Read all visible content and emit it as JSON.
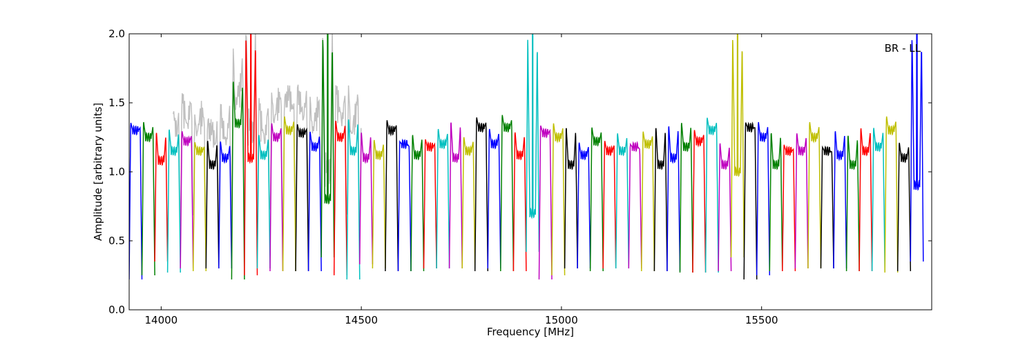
{
  "chart_data": {
    "type": "line",
    "annotation": "BR - LL",
    "xlabel": "Frequency [MHz]",
    "ylabel": "Amplitude [arbitrary units]",
    "xlim": [
      13920,
      15925
    ],
    "ylim": [
      0.0,
      2.0
    ],
    "xticks": [
      14000,
      14500,
      15000,
      15500
    ],
    "xtick_labels": [
      "14000",
      "14500",
      "15000",
      "15500"
    ],
    "yticks": [
      0.0,
      0.5,
      1.0,
      1.5,
      2.0
    ],
    "ytick_labels": [
      "0.0",
      "0.5",
      "1.0",
      "1.5",
      "2.0"
    ],
    "grid": false,
    "legend": "none",
    "series_colors": [
      "#0000ff",
      "#008000",
      "#ff0000",
      "#00bfbf",
      "#bf00bf",
      "#bfbf00",
      "#000000"
    ],
    "background_color": "#c0c0c0",
    "channel_width_mhz": 32,
    "channels": [
      {
        "start": 13920,
        "color": "#0000ff",
        "peak": 1.36,
        "mid": 1.3,
        "dip": 0.22
      },
      {
        "start": 13952,
        "color": "#008000",
        "peak": 1.37,
        "mid": 1.25,
        "dip": 0.25
      },
      {
        "start": 13984,
        "color": "#ff0000",
        "peak": 1.3,
        "mid": 1.08,
        "dip": 0.35
      },
      {
        "start": 14016,
        "color": "#00bfbf",
        "peak": 1.32,
        "mid": 1.15,
        "dip": 0.27
      },
      {
        "start": 14048,
        "color": "#bf00bf",
        "peak": 1.3,
        "mid": 1.22,
        "dip": 0.3
      },
      {
        "start": 14080,
        "color": "#bfbf00",
        "peak": 1.22,
        "mid": 1.15,
        "dip": 0.28
      },
      {
        "start": 14112,
        "color": "#000000",
        "peak": 1.24,
        "mid": 1.05,
        "dip": 0.3
      },
      {
        "start": 14144,
        "color": "#0000ff",
        "peak": 1.23,
        "mid": 1.1,
        "dip": 0.3
      },
      {
        "start": 14176,
        "color": "#008000",
        "peak": 1.68,
        "mid": 1.35,
        "dip": 0.22
      },
      {
        "start": 14208,
        "color": "#ff0000",
        "peak": 2.0,
        "mid": 1.1,
        "dip": 0.25
      },
      {
        "start": 14240,
        "color": "#00bfbf",
        "peak": 1.28,
        "mid": 1.12,
        "dip": 0.3
      },
      {
        "start": 14272,
        "color": "#bf00bf",
        "peak": 1.36,
        "mid": 1.25,
        "dip": 0.28
      },
      {
        "start": 14304,
        "color": "#bfbf00",
        "peak": 1.41,
        "mid": 1.3,
        "dip": 0.28
      },
      {
        "start": 14336,
        "color": "#000000",
        "peak": 1.35,
        "mid": 1.28,
        "dip": 0.28
      },
      {
        "start": 14368,
        "color": "#0000ff",
        "peak": 1.3,
        "mid": 1.18,
        "dip": 0.28
      },
      {
        "start": 14400,
        "color": "#008000",
        "peak": 2.0,
        "mid": 0.8,
        "dip": 0.38
      },
      {
        "start": 14432,
        "color": "#ff0000",
        "peak": 1.38,
        "mid": 1.25,
        "dip": 0.25
      },
      {
        "start": 14464,
        "color": "#00bfbf",
        "peak": 1.4,
        "mid": 1.15,
        "dip": 0.22
      },
      {
        "start": 14496,
        "color": "#bf00bf",
        "peak": 1.3,
        "mid": 1.1,
        "dip": 0.33
      },
      {
        "start": 14528,
        "color": "#bfbf00",
        "peak": 1.24,
        "mid": 1.12,
        "dip": 0.3
      },
      {
        "start": 14560,
        "color": "#000000",
        "peak": 1.38,
        "mid": 1.3,
        "dip": 0.28
      },
      {
        "start": 14592,
        "color": "#0000ff",
        "peak": 1.22,
        "mid": 1.2,
        "dip": 0.28
      },
      {
        "start": 14624,
        "color": "#008000",
        "peak": 1.28,
        "mid": 1.12,
        "dip": 0.28
      },
      {
        "start": 14656,
        "color": "#ff0000",
        "peak": 1.24,
        "mid": 1.18,
        "dip": 0.3
      },
      {
        "start": 14688,
        "color": "#00bfbf",
        "peak": 1.32,
        "mid": 1.2,
        "dip": 0.3
      },
      {
        "start": 14720,
        "color": "#bf00bf",
        "peak": 1.38,
        "mid": 1.1,
        "dip": 0.3
      },
      {
        "start": 14752,
        "color": "#bfbf00",
        "peak": 1.26,
        "mid": 1.15,
        "dip": 0.3
      },
      {
        "start": 14784,
        "color": "#000000",
        "peak": 1.4,
        "mid": 1.32,
        "dip": 0.28
      },
      {
        "start": 14816,
        "color": "#0000ff",
        "peak": 1.32,
        "mid": 1.2,
        "dip": 0.3
      },
      {
        "start": 14848,
        "color": "#008000",
        "peak": 1.42,
        "mid": 1.32,
        "dip": 0.28
      },
      {
        "start": 14880,
        "color": "#ff0000",
        "peak": 1.3,
        "mid": 1.12,
        "dip": 0.28
      },
      {
        "start": 14912,
        "color": "#00bfbf",
        "peak": 2.0,
        "mid": 0.7,
        "dip": 0.42
      },
      {
        "start": 14944,
        "color": "#bf00bf",
        "peak": 1.34,
        "mid": 1.28,
        "dip": 0.22
      },
      {
        "start": 14976,
        "color": "#bfbf00",
        "peak": 1.36,
        "mid": 1.25,
        "dip": 0.25
      },
      {
        "start": 15008,
        "color": "#000000",
        "peak": 1.34,
        "mid": 1.05,
        "dip": 0.3
      },
      {
        "start": 15040,
        "color": "#0000ff",
        "peak": 1.22,
        "mid": 1.12,
        "dip": 0.3
      },
      {
        "start": 15072,
        "color": "#008000",
        "peak": 1.33,
        "mid": 1.22,
        "dip": 0.28
      },
      {
        "start": 15104,
        "color": "#ff0000",
        "peak": 1.23,
        "mid": 1.15,
        "dip": 0.3
      },
      {
        "start": 15136,
        "color": "#00bfbf",
        "peak": 1.29,
        "mid": 1.15,
        "dip": 0.3
      },
      {
        "start": 15168,
        "color": "#bf00bf",
        "peak": 1.2,
        "mid": 1.18,
        "dip": 0.3
      },
      {
        "start": 15200,
        "color": "#bfbf00",
        "peak": 1.3,
        "mid": 1.2,
        "dip": 0.28
      },
      {
        "start": 15232,
        "color": "#000000",
        "peak": 1.34,
        "mid": 1.05,
        "dip": 0.28
      },
      {
        "start": 15264,
        "color": "#0000ff",
        "peak": 1.35,
        "mid": 1.1,
        "dip": 0.28
      },
      {
        "start": 15296,
        "color": "#008000",
        "peak": 1.37,
        "mid": 1.18,
        "dip": 0.27
      },
      {
        "start": 15328,
        "color": "#ff0000",
        "peak": 1.31,
        "mid": 1.22,
        "dip": 0.27
      },
      {
        "start": 15360,
        "color": "#00bfbf",
        "peak": 1.4,
        "mid": 1.3,
        "dip": 0.27
      },
      {
        "start": 15392,
        "color": "#bf00bf",
        "peak": 1.22,
        "mid": 1.05,
        "dip": 0.28
      },
      {
        "start": 15424,
        "color": "#bfbf00",
        "peak": 2.0,
        "mid": 1.0,
        "dip": 0.38
      },
      {
        "start": 15456,
        "color": "#000000",
        "peak": 1.36,
        "mid": 1.32,
        "dip": 0.22
      },
      {
        "start": 15488,
        "color": "#0000ff",
        "peak": 1.37,
        "mid": 1.25,
        "dip": 0.25
      },
      {
        "start": 15520,
        "color": "#008000",
        "peak": 1.3,
        "mid": 1.05,
        "dip": 0.28
      },
      {
        "start": 15552,
        "color": "#ff0000",
        "peak": 1.2,
        "mid": 1.15,
        "dip": 0.28
      },
      {
        "start": 15584,
        "color": "#bf00bf",
        "peak": 1.29,
        "mid": 1.15,
        "dip": 0.3
      },
      {
        "start": 15616,
        "color": "#bfbf00",
        "peak": 1.37,
        "mid": 1.25,
        "dip": 0.3
      },
      {
        "start": 15648,
        "color": "#000000",
        "peak": 1.18,
        "mid": 1.15,
        "dip": 0.3
      },
      {
        "start": 15680,
        "color": "#0000ff",
        "peak": 1.31,
        "mid": 1.12,
        "dip": 0.3
      },
      {
        "start": 15712,
        "color": "#008000",
        "peak": 1.28,
        "mid": 1.05,
        "dip": 0.28
      },
      {
        "start": 15744,
        "color": "#ff0000",
        "peak": 1.33,
        "mid": 1.15,
        "dip": 0.28
      },
      {
        "start": 15776,
        "color": "#00bfbf",
        "peak": 1.33,
        "mid": 1.18,
        "dip": 0.28
      },
      {
        "start": 15808,
        "color": "#bfbf00",
        "peak": 1.41,
        "mid": 1.3,
        "dip": 0.27
      },
      {
        "start": 15840,
        "color": "#000000",
        "peak": 1.22,
        "mid": 1.1,
        "dip": 0.28
      },
      {
        "start": 15872,
        "color": "#0000ff",
        "peak": 2.0,
        "mid": 0.9,
        "dip": 0.35
      }
    ]
  }
}
